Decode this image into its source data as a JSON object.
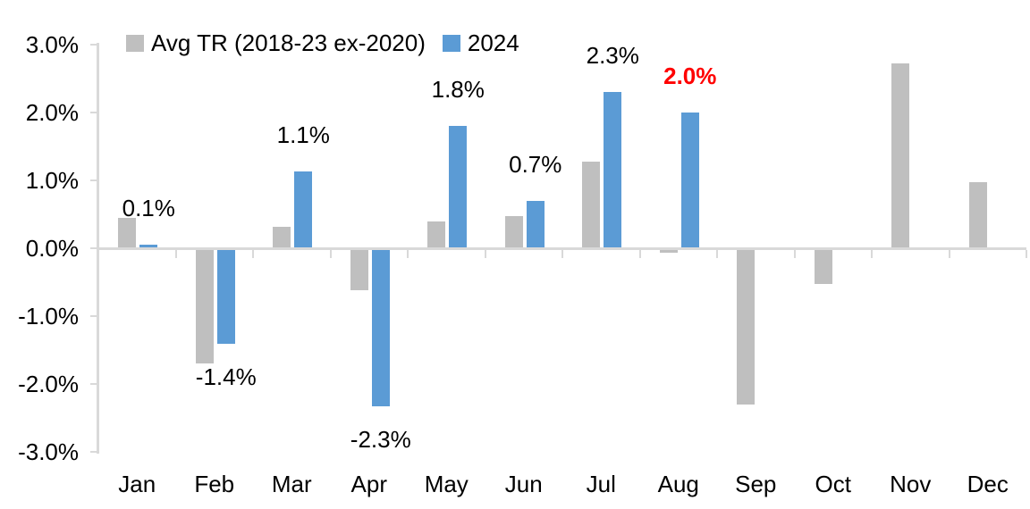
{
  "chart_data": {
    "type": "bar",
    "categories": [
      "Jan",
      "Feb",
      "Mar",
      "Apr",
      "May",
      "Jun",
      "Jul",
      "Aug",
      "Sep",
      "Oct",
      "Nov",
      "Dec"
    ],
    "series": [
      {
        "name": "Avg TR (2018-23 ex-2020)",
        "color": "#BFBFBF",
        "values": [
          0.45,
          -1.7,
          0.32,
          -0.62,
          0.4,
          0.47,
          1.27,
          -0.07,
          -2.3,
          -0.52,
          2.72,
          0.97
        ]
      },
      {
        "name": "2024",
        "color": "#5B9BD5",
        "values": [
          0.05,
          -1.41,
          1.13,
          -2.33,
          1.8,
          0.7,
          2.3,
          2.0,
          null,
          null,
          null,
          null
        ]
      }
    ],
    "data_labels": [
      {
        "category": "Jan",
        "text": "0.1%",
        "color": "#000000",
        "bold": false
      },
      {
        "category": "Feb",
        "text": "-1.4%",
        "color": "#000000",
        "bold": false
      },
      {
        "category": "Mar",
        "text": "1.1%",
        "color": "#000000",
        "bold": false
      },
      {
        "category": "Apr",
        "text": "-2.3%",
        "color": "#000000",
        "bold": false
      },
      {
        "category": "May",
        "text": "1.8%",
        "color": "#000000",
        "bold": false
      },
      {
        "category": "Jun",
        "text": "0.7%",
        "color": "#000000",
        "bold": false
      },
      {
        "category": "Jul",
        "text": "2.3%",
        "color": "#000000",
        "bold": false
      },
      {
        "category": "Aug",
        "text": "2.0%",
        "color": "#FF0000",
        "bold": true
      }
    ],
    "y_ticks": [
      {
        "label": "3.0%",
        "value": 3
      },
      {
        "label": "2.0%",
        "value": 2
      },
      {
        "label": "1.0%",
        "value": 1
      },
      {
        "label": "0.0%",
        "value": 0
      },
      {
        "label": "-1.0%",
        "value": -1
      },
      {
        "label": "-2.0%",
        "value": -2
      },
      {
        "label": "-3.0%",
        "value": -3
      }
    ],
    "ylim": [
      -3,
      3
    ],
    "xlabel": "",
    "ylabel": "",
    "title": "",
    "grid": false,
    "legend_position": "top",
    "axis_color": "#D9D9D9",
    "text_color": "#000000",
    "highlight_color": "#FF0000"
  }
}
